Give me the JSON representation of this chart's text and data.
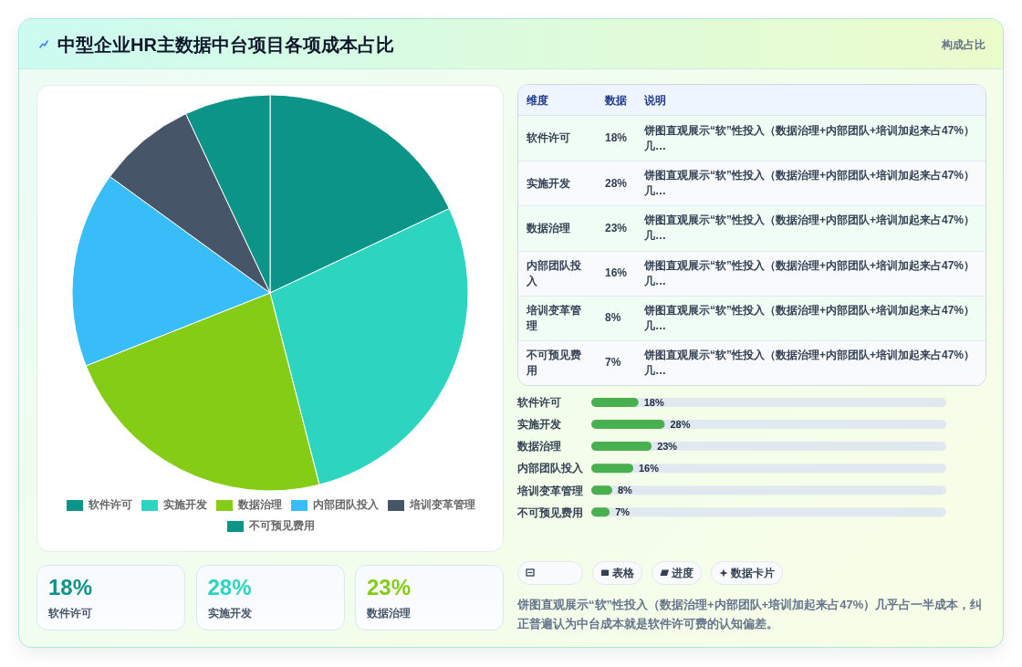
{
  "chart_data": [
    {
      "type": "pie",
      "title": "中型企业HR主数据中台项目各项成本占比",
      "categories": [
        "软件许可",
        "实施开发",
        "数据治理",
        "内部团队投入",
        "培训变革管理",
        "不可预见费用"
      ],
      "values": [
        18,
        28,
        23,
        16,
        8,
        7
      ],
      "colors": [
        "#0d9488",
        "#2dd4bf",
        "#84cc16",
        "#38bdf8",
        "#475569",
        "#0d9488"
      ],
      "legend": "bottom"
    },
    {
      "type": "other",
      "annotations": [
        "构成占比"
      ]
    },
    {
      "type": "other",
      "categories": [
        "软件许可",
        "实施开发",
        "数据治理",
        "内部团队投入",
        "培训变革管理",
        "不可预见费用"
      ],
      "value_labels": [
        "18%",
        "28%",
        "23%",
        "16%",
        "8%",
        "7%"
      ],
      "annotations": [
        "维度",
        "数据",
        "说明",
        "饼图直观展示“软”性投入（数据治理+内部团队+培训加起来占47%）几…",
        "饼图直观展示“软”性投入（数据治理+内部团队+培训加起来占47%）几…",
        "饼图直观展示“软”性投入（数据治理+内部团队+培训加起来占47%）几…",
        "饼图直观展示“软”性投入（数据治理+内部团队+培训加起来占47%）几…",
        "饼图直观展示“软”性投入（数据治理+内部团队+培训加起来占47%）几…",
        "饼图直观展示“软”性投入（数据治理+内部团队+培训加起来占47%）几…"
      ]
    },
    {
      "type": "bar",
      "orientation": "horizontal",
      "categories": [
        "软件许可",
        "实施开发",
        "数据治理",
        "内部团队投入",
        "培训变革管理",
        "不可预见费用"
      ],
      "values": [
        18,
        28,
        23,
        16,
        8,
        7
      ],
      "value_labels": [
        "18%",
        "28%",
        "23%",
        "16%",
        "8%",
        "7%"
      ],
      "color": "#48b04f"
    },
    {
      "type": "other",
      "categories": [
        "软件许可",
        "实施开发",
        "数据治理"
      ],
      "value_labels": [
        "18%",
        "28%",
        "23%"
      ]
    },
    {
      "type": "other",
      "annotations": [
        "表格",
        "进度",
        "数据卡片",
        "饼图直观展示“软”性投入（数据治理+内部团队+培训加起来占47%）几乎占一半成本，纠正普遍认为中台成本就是软件许可费的认知偏差。"
      ]
    }
  ]
}
